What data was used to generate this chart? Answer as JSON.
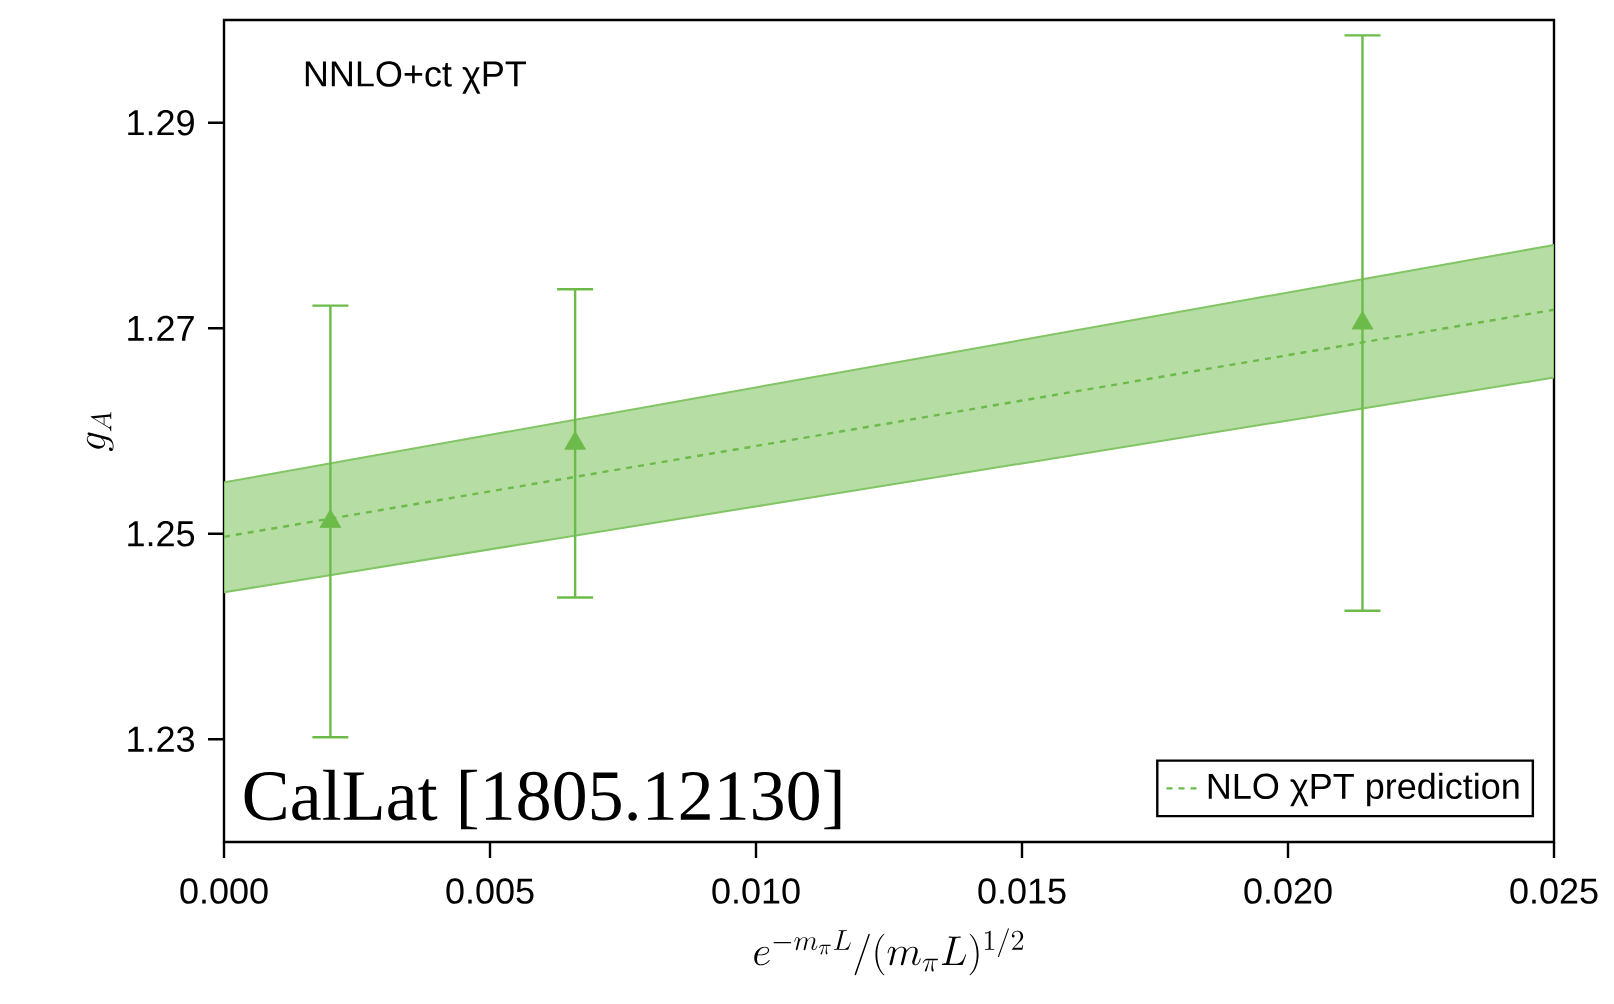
{
  "chart_data": {
    "type": "scatter",
    "xlabel": "e^{-m_\\pi L}/(m_\\pi L)^{1/2}",
    "ylabel": "g_A",
    "annotations": [
      "NNLO+ct χPT",
      "CalLat [1805.12130]"
    ],
    "xlim": [
      0,
      0.025
    ],
    "ylim": [
      1.22,
      1.3
    ],
    "xticks": [
      {
        "value": 0,
        "label": "0.000"
      },
      {
        "value": 0.005,
        "label": "0.005"
      },
      {
        "value": 0.01,
        "label": "0.010"
      },
      {
        "value": 0.015,
        "label": "0.015"
      },
      {
        "value": 0.02,
        "label": "0.020"
      },
      {
        "value": 0.025,
        "label": "0.025"
      }
    ],
    "yticks": [
      1.23,
      1.25,
      1.27,
      1.29
    ],
    "legend": "bottom right",
    "series": [
      {
        "type": "line",
        "name": "NLO χPT prediction",
        "color": "#6cbb4a",
        "line_style": "dashed",
        "x": [
          0,
          0.025
        ],
        "values": [
          1.2497,
          1.2718
        ],
        "lower": [
          1.2443,
          1.2652
        ],
        "upper": [
          1.255,
          1.2781
        ]
      },
      {
        "color": "#6cbb4a",
        "marker": "triangle",
        "x": [
          0.002,
          0.0066,
          0.0214
        ],
        "values": [
          1.2512,
          1.2588,
          1.2705
        ],
        "errors": [
          0.021,
          0.015,
          0.028
        ]
      }
    ]
  }
}
